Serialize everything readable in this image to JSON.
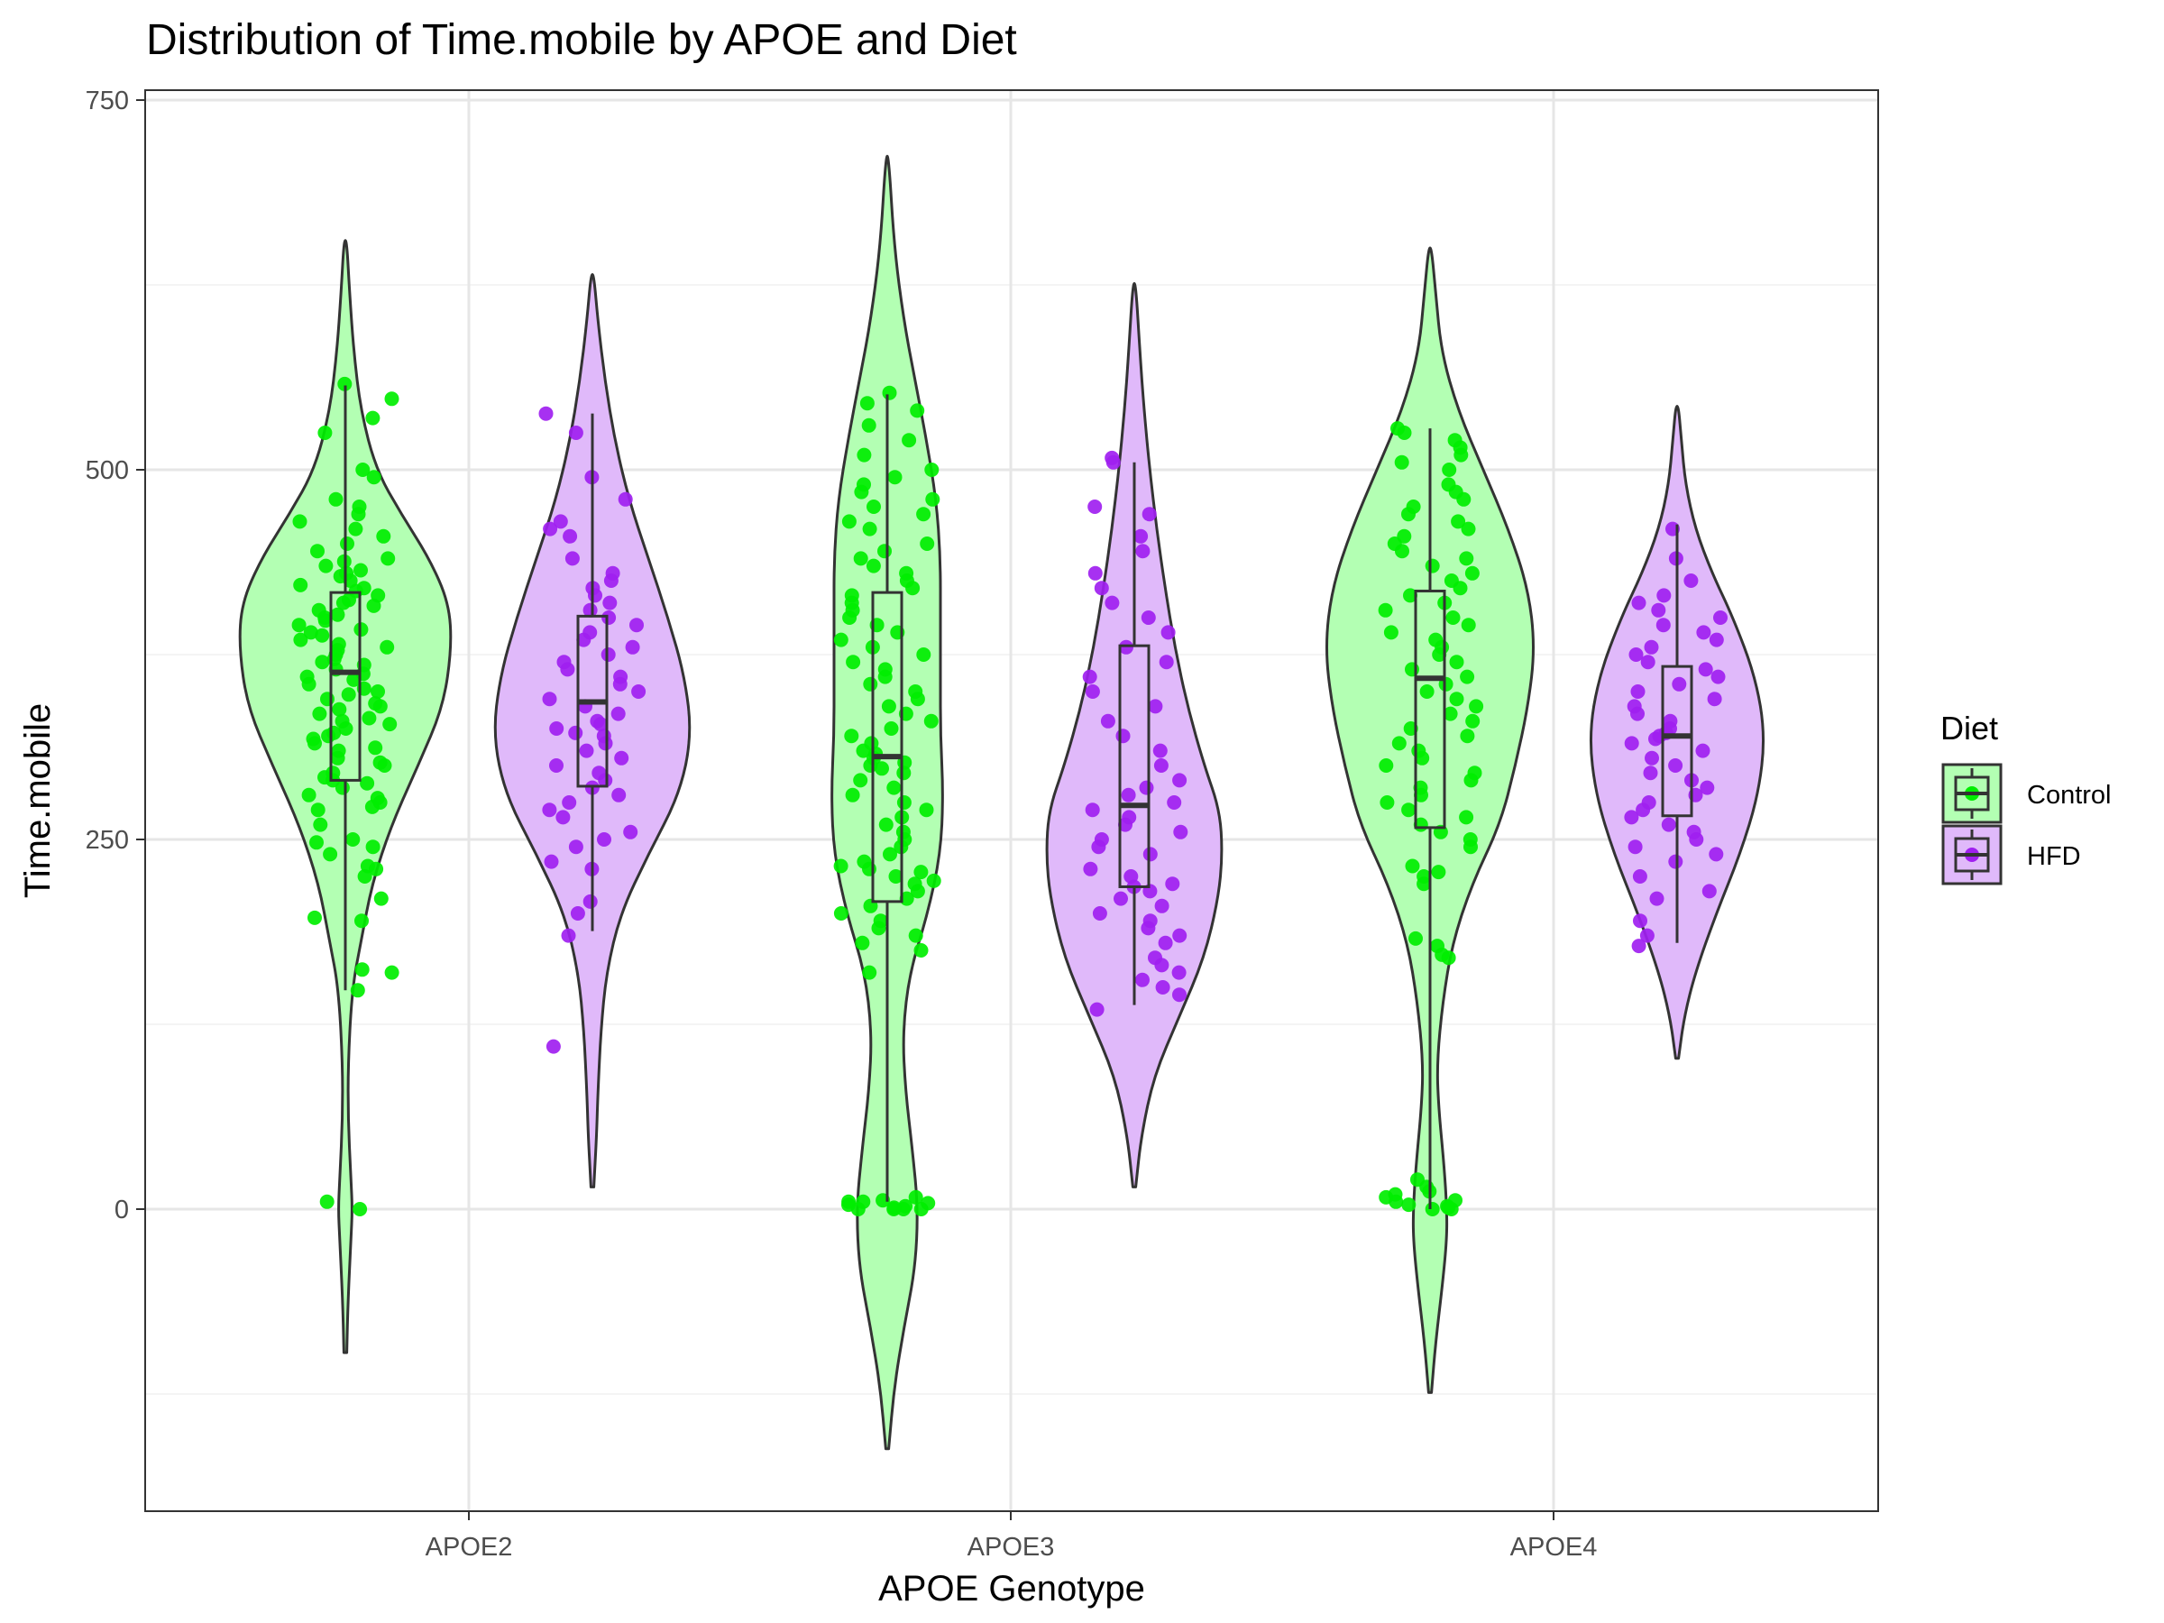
{
  "chart_data": {
    "type": "violin",
    "title": "Distribution of Time.mobile by APOE and Diet",
    "xlabel": "APOE Genotype",
    "ylabel": "Time.mobile",
    "categories": [
      "APOE2",
      "APOE3",
      "APOE4"
    ],
    "yticks": [
      0,
      250,
      500,
      750
    ],
    "ylim": [
      -205,
      757
    ],
    "grid": true,
    "legend": {
      "title": "Diet",
      "position": "right",
      "items": [
        "Control",
        "HFD"
      ]
    },
    "colors": {
      "Control": {
        "fill": "#b3ffb3",
        "point": "#00ee00"
      },
      "HFD": {
        "fill": "#e0b9fa",
        "point": "#a020f0"
      },
      "outline": "#333333",
      "grid_major": "#e6e6e6",
      "grid_minor": "#f0f0f0"
    },
    "series": [
      {
        "name": "Control",
        "groups": [
          {
            "category": "APOE2",
            "box": {
              "whisker_low": 148,
              "q1": 290,
              "median": 363,
              "q3": 417,
              "whisker_high": 557
            },
            "violin": [
              [
                -97,
                1
              ],
              [
                -60,
                2
              ],
              [
                -20,
                4
              ],
              [
                0,
                5
              ],
              [
                20,
                4
              ],
              [
                60,
                2
              ],
              [
                100,
                2
              ],
              [
                150,
                5
              ],
              [
                180,
                11
              ],
              [
                220,
                19
              ],
              [
                260,
                33
              ],
              [
                300,
                52
              ],
              [
                340,
                70
              ],
              [
                380,
                76
              ],
              [
                410,
                74
              ],
              [
                440,
                60
              ],
              [
                470,
                40
              ],
              [
                500,
                22
              ],
              [
                540,
                11
              ],
              [
                580,
                6
              ],
              [
                620,
                3
              ],
              [
                655,
                1
              ]
            ],
            "points": [
              0,
              5,
              148,
              160,
              162,
              195,
              197,
              210,
              225,
              230,
              232,
              240,
              245,
              248,
              250,
              260,
              270,
              272,
              275,
              278,
              280,
              285,
              288,
              290,
              292,
              295,
              300,
              302,
              305,
              310,
              312,
              315,
              318,
              320,
              322,
              325,
              328,
              330,
              332,
              335,
              338,
              340,
              342,
              345,
              348,
              350,
              352,
              355,
              358,
              360,
              362,
              365,
              368,
              370,
              372,
              375,
              378,
              380,
              382,
              385,
              388,
              390,
              392,
              395,
              398,
              400,
              402,
              405,
              408,
              410,
              412,
              415,
              418,
              420,
              422,
              425,
              428,
              430,
              432,
              435,
              438,
              440,
              445,
              450,
              455,
              460,
              465,
              470,
              475,
              480,
              495,
              500,
              525,
              535,
              548,
              558
            ]
          },
          {
            "category": "APOE3",
            "box": {
              "whisker_low": 5,
              "q1": 208,
              "median": 306,
              "q3": 417,
              "whisker_high": 551
            },
            "violin": [
              [
                -162,
                1
              ],
              [
                -120,
                5
              ],
              [
                -80,
                12
              ],
              [
                -40,
                20
              ],
              [
                0,
                22
              ],
              [
                40,
                18
              ],
              [
                80,
                13
              ],
              [
                120,
                11
              ],
              [
                160,
                16
              ],
              [
                200,
                29
              ],
              [
                240,
                38
              ],
              [
                280,
                40
              ],
              [
                320,
                38
              ],
              [
                360,
                38
              ],
              [
                400,
                38
              ],
              [
                440,
                38
              ],
              [
                480,
                35
              ],
              [
                520,
                28
              ],
              [
                560,
                20
              ],
              [
                600,
                12
              ],
              [
                650,
                5
              ],
              [
                712,
                1
              ]
            ],
            "points": [
              0,
              0,
              0,
              0,
              1,
              2,
              3,
              4,
              5,
              5,
              6,
              8,
              160,
              175,
              180,
              185,
              190,
              195,
              200,
              205,
              210,
              215,
              220,
              222,
              225,
              228,
              230,
              232,
              235,
              240,
              245,
              250,
              255,
              260,
              265,
              270,
              275,
              280,
              285,
              290,
              295,
              298,
              300,
              302,
              305,
              308,
              310,
              315,
              320,
              325,
              330,
              335,
              340,
              345,
              350,
              355,
              360,
              365,
              370,
              375,
              380,
              385,
              390,
              395,
              400,
              405,
              410,
              415,
              420,
              425,
              430,
              435,
              440,
              445,
              450,
              460,
              465,
              470,
              475,
              480,
              485,
              490,
              495,
              500,
              510,
              520,
              530,
              540,
              545,
              552
            ]
          },
          {
            "category": "APOE4",
            "box": {
              "whisker_low": 0,
              "q1": 258,
              "median": 359,
              "q3": 418,
              "whisker_high": 528
            },
            "violin": [
              [
                -124,
                1
              ],
              [
                -90,
                4
              ],
              [
                -50,
                9
              ],
              [
                -20,
                12
              ],
              [
                0,
                12
              ],
              [
                30,
                10
              ],
              [
                70,
                6
              ],
              [
                100,
                5
              ],
              [
                140,
                9
              ],
              [
                180,
                16
              ],
              [
                220,
                30
              ],
              [
                260,
                50
              ],
              [
                300,
                61
              ],
              [
                340,
                70
              ],
              [
                380,
                75
              ],
              [
                420,
                70
              ],
              [
                460,
                56
              ],
              [
                500,
                38
              ],
              [
                540,
                20
              ],
              [
                580,
                8
              ],
              [
                620,
                4
              ],
              [
                650,
                1
              ]
            ],
            "points": [
              0,
              0,
              1,
              2,
              3,
              5,
              6,
              8,
              10,
              12,
              15,
              20,
              170,
              172,
              178,
              183,
              220,
              225,
              228,
              232,
              245,
              250,
              255,
              260,
              265,
              270,
              275,
              280,
              285,
              290,
              295,
              300,
              305,
              310,
              315,
              320,
              325,
              330,
              335,
              340,
              345,
              350,
              355,
              360,
              365,
              370,
              375,
              380,
              385,
              390,
              395,
              400,
              405,
              410,
              415,
              420,
              425,
              430,
              435,
              440,
              445,
              450,
              455,
              460,
              465,
              470,
              475,
              480,
              485,
              490,
              500,
              505,
              510,
              515,
              520,
              525,
              528
            ]
          }
        ]
      },
      {
        "name": "HFD",
        "groups": [
          {
            "category": "APOE2",
            "box": {
              "whisker_low": 188,
              "q1": 286,
              "median": 343,
              "q3": 401,
              "whisker_high": 538
            },
            "violin": [
              [
                15,
                1
              ],
              [
                50,
                3
              ],
              [
                80,
                4
              ],
              [
                120,
                6
              ],
              [
                160,
                10
              ],
              [
                200,
                20
              ],
              [
                240,
                40
              ],
              [
                280,
                62
              ],
              [
                320,
                71
              ],
              [
                360,
                66
              ],
              [
                400,
                54
              ],
              [
                440,
                40
              ],
              [
                480,
                26
              ],
              [
                520,
                16
              ],
              [
                560,
                9
              ],
              [
                600,
                4
              ],
              [
                632,
                1
              ]
            ],
            "points": [
              110,
              185,
              200,
              208,
              230,
              235,
              245,
              250,
              255,
              265,
              270,
              275,
              280,
              285,
              290,
              295,
              300,
              305,
              310,
              315,
              320,
              322,
              325,
              328,
              330,
              335,
              340,
              345,
              350,
              355,
              360,
              365,
              370,
              375,
              380,
              385,
              390,
              395,
              400,
              405,
              410,
              415,
              420,
              425,
              430,
              440,
              455,
              460,
              465,
              480,
              495,
              525,
              538
            ]
          },
          {
            "category": "APOE3",
            "box": {
              "whisker_low": 138,
              "q1": 218,
              "median": 273,
              "q3": 381,
              "whisker_high": 505
            },
            "violin": [
              [
                15,
                1
              ],
              [
                50,
                5
              ],
              [
                90,
                14
              ],
              [
                130,
                32
              ],
              [
                170,
                50
              ],
              [
                210,
                60
              ],
              [
                240,
                63
              ],
              [
                270,
                61
              ],
              [
                300,
                50
              ],
              [
                340,
                38
              ],
              [
                380,
                29
              ],
              [
                420,
                22
              ],
              [
                460,
                16
              ],
              [
                500,
                11
              ],
              [
                540,
                7
              ],
              [
                580,
                4
              ],
              [
                626,
                1
              ]
            ],
            "points": [
              135,
              145,
              150,
              155,
              160,
              165,
              170,
              180,
              185,
              190,
              195,
              200,
              205,
              210,
              215,
              218,
              220,
              225,
              230,
              240,
              245,
              250,
              255,
              260,
              265,
              270,
              275,
              280,
              285,
              290,
              300,
              310,
              320,
              330,
              340,
              350,
              360,
              370,
              380,
              390,
              400,
              410,
              420,
              430,
              445,
              455,
              470,
              475,
              505,
              508
            ]
          },
          {
            "category": "APOE4",
            "box": {
              "whisker_low": 180,
              "q1": 266,
              "median": 320,
              "q3": 367,
              "whisker_high": 463
            },
            "violin": [
              [
                102,
                1
              ],
              [
                130,
                5
              ],
              [
                160,
                13
              ],
              [
                200,
                28
              ],
              [
                240,
                45
              ],
              [
                280,
                58
              ],
              [
                320,
                63
              ],
              [
                360,
                56
              ],
              [
                400,
                40
              ],
              [
                430,
                25
              ],
              [
                460,
                13
              ],
              [
                490,
                6
              ],
              [
                520,
                3
              ],
              [
                543,
                1
              ]
            ],
            "points": [
              178,
              185,
              195,
              210,
              215,
              225,
              235,
              240,
              245,
              250,
              255,
              260,
              265,
              270,
              275,
              280,
              285,
              290,
              295,
              300,
              305,
              310,
              315,
              318,
              320,
              322,
              325,
              330,
              335,
              340,
              345,
              350,
              355,
              360,
              365,
              370,
              375,
              380,
              385,
              390,
              395,
              400,
              405,
              410,
              415,
              425,
              440,
              460
            ]
          }
        ]
      }
    ]
  }
}
